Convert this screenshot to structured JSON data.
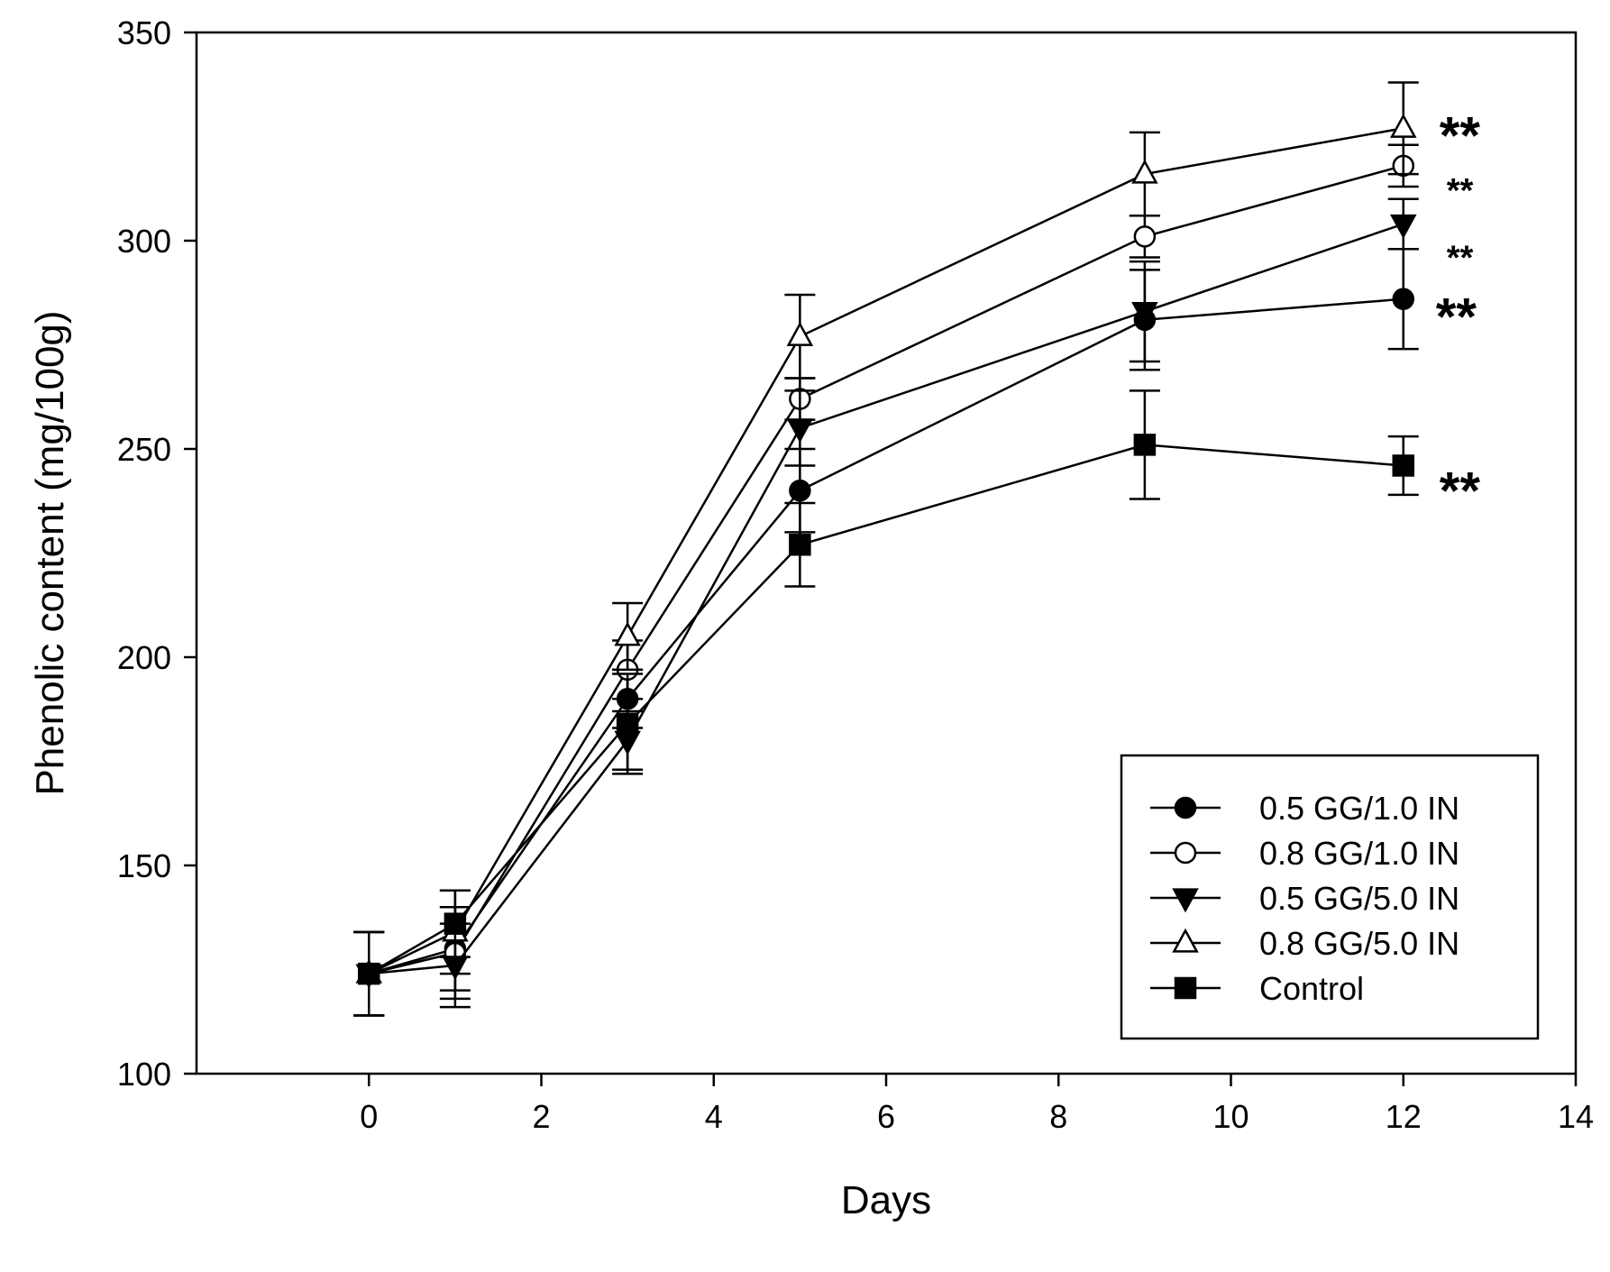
{
  "chart_data": {
    "type": "line",
    "title": "",
    "xlabel": "Days",
    "ylabel": "Phenolic content (mg/100g)",
    "xlim": [
      -2,
      14
    ],
    "ylim": [
      100,
      350
    ],
    "xticks": [
      0,
      2,
      4,
      6,
      8,
      10,
      12,
      14
    ],
    "yticks": [
      100,
      150,
      200,
      250,
      300,
      350
    ],
    "x": [
      0,
      1,
      3,
      5,
      9,
      12
    ],
    "series": [
      {
        "name": "0.5 GG/1.0 IN",
        "marker": "circle-filled",
        "values": [
          124,
          130,
          190,
          240,
          281,
          286
        ],
        "errors": [
          10,
          10,
          7,
          10,
          12,
          12
        ]
      },
      {
        "name": "0.8 GG/1.0 IN",
        "marker": "circle-open",
        "values": [
          124,
          129,
          197,
          262,
          301,
          318
        ],
        "errors": [
          10,
          11,
          7,
          5,
          5,
          5
        ]
      },
      {
        "name": "0.5 GG/5.0 IN",
        "marker": "triangle-down-filled",
        "values": [
          124,
          126,
          180,
          255,
          283,
          304
        ],
        "errors": [
          10,
          10,
          7,
          9,
          12,
          6
        ]
      },
      {
        "name": "0.8 GG/5.0 IN",
        "marker": "triangle-up-open",
        "values": [
          124,
          134,
          205,
          277,
          316,
          327
        ],
        "errors": [
          10,
          10,
          8,
          10,
          10,
          11
        ]
      },
      {
        "name": "Control",
        "marker": "square-filled",
        "values": [
          124,
          136,
          184,
          227,
          251,
          246
        ],
        "errors": [
          10,
          8,
          12,
          10,
          13,
          7
        ]
      }
    ],
    "annotations": [
      {
        "text": "**",
        "series": "0.8 GG/5.0 IN",
        "size": "large"
      },
      {
        "text": "**",
        "series": "0.8 GG/1.0 IN",
        "size": "small"
      },
      {
        "text": "**",
        "series": "0.5 GG/5.0 IN",
        "size": "small"
      },
      {
        "text": "**",
        "series": "0.5 GG/1.0 IN",
        "size": "large"
      },
      {
        "text": "**",
        "series": "Control",
        "size": "large"
      }
    ],
    "legend": {
      "position": "bottom-right"
    },
    "grid": false
  }
}
